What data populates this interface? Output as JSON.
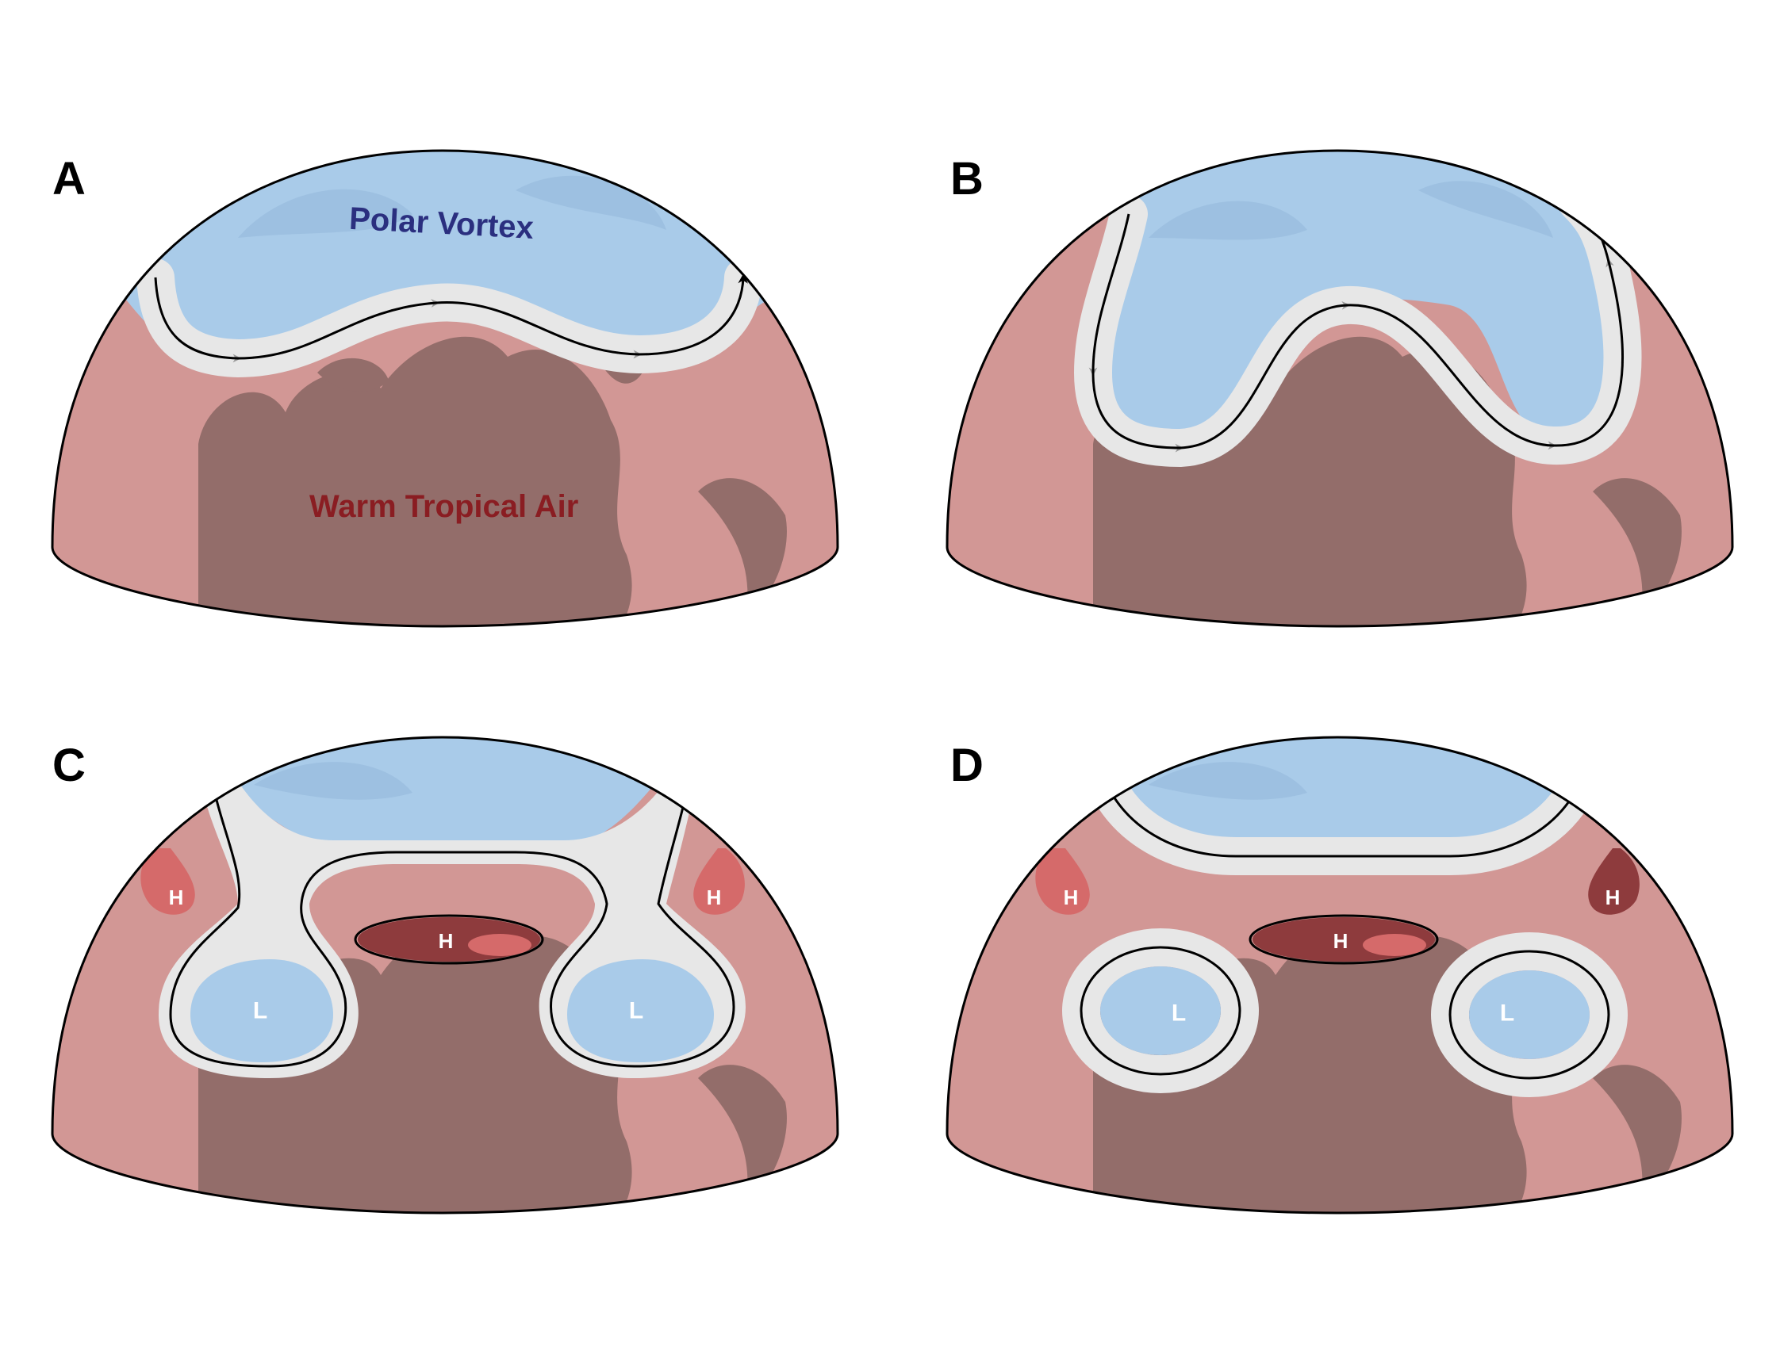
{
  "figure": {
    "panels": [
      {
        "id": "A",
        "letter": "A",
        "labels": {
          "polar": "Polar Vortex",
          "warm": "Warm Tropical Air"
        }
      },
      {
        "id": "B",
        "letter": "B"
      },
      {
        "id": "C",
        "letter": "C",
        "marks": {
          "high": "H",
          "low": "L"
        }
      },
      {
        "id": "D",
        "letter": "D",
        "marks": {
          "high": "H",
          "low": "L"
        }
      }
    ]
  },
  "colors": {
    "polar_air": "#a9cbe9",
    "polar_shade": "#8fb3d6",
    "warm_air": "#d29795",
    "land": "#936d6a",
    "jet_stream_band": "#e7e7e7",
    "jet_stream_arrow": "#000000",
    "band_chevron": "#9a9a9a",
    "high_pressure": "#8e3b3d",
    "high_pressure_light": "#d56a6a",
    "polar_label": "#2b2f7f",
    "warm_label": "#8a1d22"
  }
}
